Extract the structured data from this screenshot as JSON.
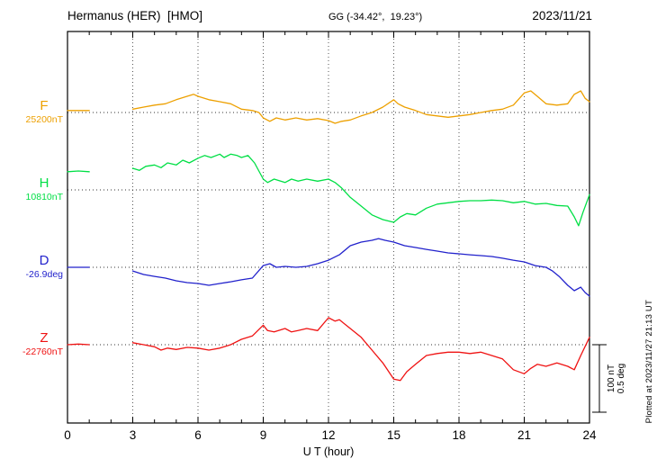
{
  "header": {
    "station_title": "Hermanus (HER)  [HMO]",
    "coordinates": "GG (-34.42°,  19.23°)",
    "date": "2023/11/21"
  },
  "side_notes": {
    "plotted_note": "Plotted at 2023/11/27 21:13 UT",
    "scale_labels": [
      "100 nT",
      "0.5 deg"
    ]
  },
  "chart_data": {
    "type": "line",
    "title": "Hermanus (HER) [HMO] magnetogram 2023/11/21",
    "xlabel": "U T (hour)",
    "xlim": [
      0,
      24
    ],
    "x_major_ticks": [
      0,
      3,
      6,
      9,
      12,
      15,
      18,
      21,
      24
    ],
    "x_minor_step": 1,
    "grid": {
      "vertical_dotted_at_major_ticks": true,
      "horizontal_dotted_at_baselines": true
    },
    "scale_bar": {
      "nT_per_division": 100,
      "deg_per_division": 0.5
    },
    "series": [
      {
        "name": "F",
        "unit": "nT",
        "baseline": 25200,
        "baseline_label": "25200nT",
        "color": "#eda000",
        "points": [
          [
            0,
            25203
          ],
          [
            0.5,
            25203
          ],
          [
            1,
            25203
          ],
          [
            3,
            25205
          ],
          [
            3.5,
            25208
          ],
          [
            4,
            25211
          ],
          [
            4.5,
            25213
          ],
          [
            5,
            25219
          ],
          [
            5.5,
            25224
          ],
          [
            5.8,
            25227
          ],
          [
            6,
            25224
          ],
          [
            6.5,
            25219
          ],
          [
            7,
            25216
          ],
          [
            7.5,
            25213
          ],
          [
            8,
            25205
          ],
          [
            8.5,
            25203
          ],
          [
            8.8,
            25200
          ],
          [
            9,
            25192
          ],
          [
            9.3,
            25187
          ],
          [
            9.6,
            25192
          ],
          [
            10,
            25189
          ],
          [
            10.5,
            25192
          ],
          [
            11,
            25189
          ],
          [
            11.5,
            25191
          ],
          [
            12,
            25188
          ],
          [
            12.3,
            25184
          ],
          [
            12.6,
            25187
          ],
          [
            13,
            25189
          ],
          [
            13.5,
            25195
          ],
          [
            14,
            25200
          ],
          [
            14.5,
            25208
          ],
          [
            15,
            25219
          ],
          [
            15.2,
            25213
          ],
          [
            15.5,
            25208
          ],
          [
            16,
            25203
          ],
          [
            16.5,
            25197
          ],
          [
            17,
            25195
          ],
          [
            17.5,
            25193
          ],
          [
            18,
            25195
          ],
          [
            18.5,
            25197
          ],
          [
            19,
            25200
          ],
          [
            19.5,
            25203
          ],
          [
            20,
            25205
          ],
          [
            20.5,
            25211
          ],
          [
            21,
            25229
          ],
          [
            21.3,
            25232
          ],
          [
            21.6,
            25224
          ],
          [
            22,
            25213
          ],
          [
            22.5,
            25211
          ],
          [
            23,
            25213
          ],
          [
            23.3,
            25227
          ],
          [
            23.6,
            25232
          ],
          [
            23.8,
            25221
          ],
          [
            24,
            25216
          ]
        ]
      },
      {
        "name": "H",
        "unit": "nT",
        "baseline": 10810,
        "baseline_label": "10810nT",
        "color": "#00df45",
        "points": [
          [
            0,
            10837
          ],
          [
            0.5,
            10838
          ],
          [
            1,
            10837
          ],
          [
            3,
            10842
          ],
          [
            3.3,
            10839
          ],
          [
            3.6,
            10845
          ],
          [
            4,
            10847
          ],
          [
            4.3,
            10843
          ],
          [
            4.6,
            10850
          ],
          [
            5,
            10847
          ],
          [
            5.3,
            10854
          ],
          [
            5.6,
            10850
          ],
          [
            6,
            10857
          ],
          [
            6.3,
            10861
          ],
          [
            6.6,
            10858
          ],
          [
            7,
            10863
          ],
          [
            7.2,
            10858
          ],
          [
            7.5,
            10863
          ],
          [
            7.8,
            10861
          ],
          [
            8,
            10858
          ],
          [
            8.3,
            10861
          ],
          [
            8.6,
            10850
          ],
          [
            9,
            10826
          ],
          [
            9.2,
            10821
          ],
          [
            9.5,
            10826
          ],
          [
            10,
            10821
          ],
          [
            10.3,
            10826
          ],
          [
            10.6,
            10823
          ],
          [
            11,
            10826
          ],
          [
            11.5,
            10823
          ],
          [
            12,
            10826
          ],
          [
            12.3,
            10821
          ],
          [
            12.6,
            10813
          ],
          [
            13,
            10799
          ],
          [
            13.5,
            10786
          ],
          [
            14,
            10773
          ],
          [
            14.5,
            10766
          ],
          [
            15,
            10762
          ],
          [
            15.3,
            10770
          ],
          [
            15.6,
            10775
          ],
          [
            16,
            10773
          ],
          [
            16.5,
            10783
          ],
          [
            17,
            10789
          ],
          [
            17.5,
            10791
          ],
          [
            18,
            10793
          ],
          [
            18.5,
            10794
          ],
          [
            19,
            10794
          ],
          [
            19.5,
            10795
          ],
          [
            20,
            10794
          ],
          [
            20.5,
            10791
          ],
          [
            21,
            10793
          ],
          [
            21.5,
            10789
          ],
          [
            22,
            10790
          ],
          [
            22.5,
            10787
          ],
          [
            23,
            10786
          ],
          [
            23.3,
            10770
          ],
          [
            23.5,
            10757
          ],
          [
            23.7,
            10777
          ],
          [
            24,
            10803
          ]
        ]
      },
      {
        "name": "D",
        "unit": "deg",
        "baseline": -26.9,
        "baseline_label": "-26.9deg",
        "color": "#2222cc",
        "points": [
          [
            0,
            -26.9
          ],
          [
            0.5,
            -26.9
          ],
          [
            1,
            -26.9
          ],
          [
            3,
            -26.927
          ],
          [
            3.5,
            -26.953
          ],
          [
            4,
            -26.967
          ],
          [
            4.5,
            -26.98
          ],
          [
            5,
            -27.0
          ],
          [
            5.5,
            -27.013
          ],
          [
            6,
            -27.02
          ],
          [
            6.5,
            -27.033
          ],
          [
            7,
            -27.02
          ],
          [
            7.5,
            -27.007
          ],
          [
            8,
            -26.993
          ],
          [
            8.5,
            -26.98
          ],
          [
            9,
            -26.887
          ],
          [
            9.3,
            -26.873
          ],
          [
            9.6,
            -26.9
          ],
          [
            10,
            -26.893
          ],
          [
            10.5,
            -26.9
          ],
          [
            11,
            -26.893
          ],
          [
            11.5,
            -26.873
          ],
          [
            12,
            -26.847
          ],
          [
            12.5,
            -26.807
          ],
          [
            13,
            -26.74
          ],
          [
            13.5,
            -26.713
          ],
          [
            14,
            -26.7
          ],
          [
            14.3,
            -26.687
          ],
          [
            14.6,
            -26.7
          ],
          [
            15,
            -26.713
          ],
          [
            15.5,
            -26.74
          ],
          [
            16,
            -26.753
          ],
          [
            16.5,
            -26.767
          ],
          [
            17,
            -26.78
          ],
          [
            17.5,
            -26.793
          ],
          [
            18,
            -26.8
          ],
          [
            18.5,
            -26.807
          ],
          [
            19,
            -26.813
          ],
          [
            19.5,
            -26.82
          ],
          [
            20,
            -26.833
          ],
          [
            20.5,
            -26.847
          ],
          [
            21,
            -26.86
          ],
          [
            21.5,
            -26.887
          ],
          [
            22,
            -26.9
          ],
          [
            22.3,
            -26.927
          ],
          [
            22.6,
            -26.967
          ],
          [
            23,
            -27.033
          ],
          [
            23.3,
            -27.073
          ],
          [
            23.6,
            -27.047
          ],
          [
            23.8,
            -27.087
          ],
          [
            24,
            -27.113
          ]
        ]
      },
      {
        "name": "Z",
        "unit": "nT",
        "baseline": -22760,
        "baseline_label": "-22760nT",
        "color": "#ef1212",
        "points": [
          [
            0,
            -22760
          ],
          [
            0.5,
            -22759
          ],
          [
            1,
            -22760
          ],
          [
            3,
            -22757
          ],
          [
            3.5,
            -22760
          ],
          [
            4,
            -22763
          ],
          [
            4.3,
            -22768
          ],
          [
            4.6,
            -22765
          ],
          [
            5,
            -22767
          ],
          [
            5.5,
            -22764
          ],
          [
            6,
            -22765
          ],
          [
            6.5,
            -22768
          ],
          [
            7,
            -22765
          ],
          [
            7.5,
            -22760
          ],
          [
            8,
            -22752
          ],
          [
            8.5,
            -22747
          ],
          [
            9,
            -22731
          ],
          [
            9.2,
            -22739
          ],
          [
            9.5,
            -22741
          ],
          [
            10,
            -22736
          ],
          [
            10.3,
            -22741
          ],
          [
            10.6,
            -22739
          ],
          [
            11,
            -22736
          ],
          [
            11.5,
            -22739
          ],
          [
            12,
            -22720
          ],
          [
            12.3,
            -22725
          ],
          [
            12.5,
            -22723
          ],
          [
            13,
            -22736
          ],
          [
            13.5,
            -22749
          ],
          [
            14,
            -22768
          ],
          [
            14.5,
            -22787
          ],
          [
            15,
            -22811
          ],
          [
            15.3,
            -22813
          ],
          [
            15.6,
            -22800
          ],
          [
            16,
            -22789
          ],
          [
            16.5,
            -22776
          ],
          [
            17,
            -22773
          ],
          [
            17.5,
            -22771
          ],
          [
            18,
            -22771
          ],
          [
            18.5,
            -22773
          ],
          [
            19,
            -22771
          ],
          [
            19.5,
            -22776
          ],
          [
            20,
            -22781
          ],
          [
            20.5,
            -22797
          ],
          [
            21,
            -22803
          ],
          [
            21.3,
            -22795
          ],
          [
            21.6,
            -22789
          ],
          [
            22,
            -22792
          ],
          [
            22.5,
            -22787
          ],
          [
            23,
            -22792
          ],
          [
            23.3,
            -22797
          ],
          [
            23.6,
            -22776
          ],
          [
            24,
            -22749
          ]
        ]
      }
    ]
  }
}
